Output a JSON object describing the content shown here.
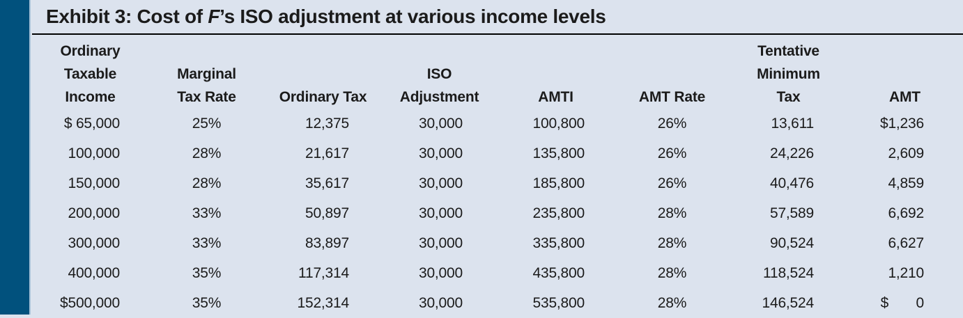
{
  "theme": {
    "accent_bar_color": "#01517d",
    "accent_edge_color": "#a9c3d9",
    "panel_bg": "#dce3ee",
    "rule_color": "#000000",
    "text_color": "#1b1b1b"
  },
  "exhibit": {
    "title_prefix": "Exhibit 3: Cost of ",
    "title_entity": "F",
    "title_suffix": "’s ISO adjustment at various income levels"
  },
  "chart_data": {
    "type": "table",
    "title": "Exhibit 3: Cost of F’s ISO adjustment at various income levels",
    "columns": [
      {
        "id": "ordinary-taxable-income",
        "header_lines": [
          "Ordinary",
          "Taxable",
          "Income"
        ],
        "align": "right"
      },
      {
        "id": "marginal-tax-rate",
        "header_lines": [
          "Marginal",
          "Tax Rate"
        ],
        "align": "center"
      },
      {
        "id": "ordinary-tax",
        "header_lines": [
          "Ordinary Tax"
        ],
        "align": "right"
      },
      {
        "id": "iso-adjustment",
        "header_lines": [
          "ISO",
          "Adjustment"
        ],
        "align": "right"
      },
      {
        "id": "amti",
        "header_lines": [
          "AMTI"
        ],
        "align": "right"
      },
      {
        "id": "amt-rate",
        "header_lines": [
          "AMT Rate"
        ],
        "align": "center"
      },
      {
        "id": "tentative-minimum-tax",
        "header_lines": [
          "Tentative",
          "Minimum",
          "Tax"
        ],
        "align": "right"
      },
      {
        "id": "amt",
        "header_lines": [
          "AMT"
        ],
        "align": "right"
      }
    ],
    "rows": [
      [
        "$ 65,000",
        "25%",
        "12,375",
        "30,000",
        "100,800",
        "26%",
        "13,611",
        "$1,236"
      ],
      [
        "100,000",
        "28%",
        "21,617",
        "30,000",
        "135,800",
        "26%",
        "24,226",
        "2,609"
      ],
      [
        "150,000",
        "28%",
        "35,617",
        "30,000",
        "185,800",
        "26%",
        "40,476",
        "4,859"
      ],
      [
        "200,000",
        "33%",
        "50,897",
        "30,000",
        "235,800",
        "28%",
        "57,589",
        "6,692"
      ],
      [
        "300,000",
        "33%",
        "83,897",
        "30,000",
        "335,800",
        "28%",
        "90,524",
        "6,627"
      ],
      [
        "400,000",
        "35%",
        "117,314",
        "30,000",
        "435,800",
        "28%",
        "118,524",
        "1,210"
      ],
      [
        "$500,000",
        "35%",
        "152,314",
        "30,000",
        "535,800",
        "28%",
        "146,524",
        "$       0"
      ]
    ]
  }
}
